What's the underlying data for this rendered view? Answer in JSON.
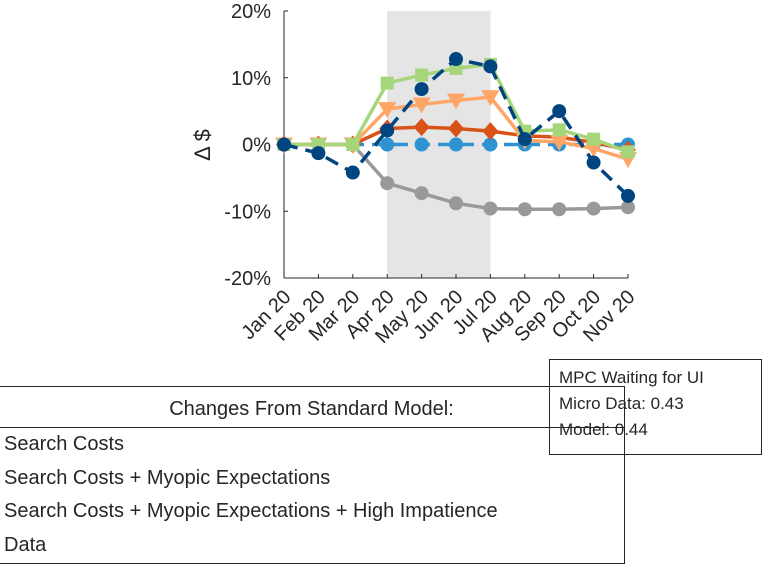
{
  "chart_data": {
    "type": "line",
    "ylabel": "Δ $",
    "x": [
      "Jan 20",
      "Feb 20",
      "Mar 20",
      "Apr 20",
      "May 20",
      "Jun 20",
      "Jul 20",
      "Aug 20",
      "Sep 20",
      "Oct 20",
      "Nov 20"
    ],
    "ylim": [
      -20,
      20
    ],
    "yticks": [
      "20%",
      "10%",
      "0%",
      "-10%",
      "-20%"
    ],
    "shaded_region": [
      "Apr 20",
      "Jul 20"
    ],
    "grid": false,
    "series": [
      {
        "color": "#2E93D0",
        "marker": "circle",
        "dash": true,
        "values": [
          0,
          0,
          0,
          0,
          0,
          0,
          0,
          0,
          0,
          0,
          0
        ]
      },
      {
        "color": "#999999",
        "marker": "circle",
        "dash": false,
        "values": [
          0,
          0,
          0,
          -5.8,
          -7.3,
          -8.8,
          -9.6,
          -9.7,
          -9.7,
          -9.6,
          -9.4
        ]
      },
      {
        "color": "#D95319",
        "marker": "diamond",
        "dash": false,
        "values": [
          0,
          0,
          0,
          2.4,
          2.6,
          2.4,
          2.0,
          1.3,
          1.1,
          0.3,
          -0.8
        ]
      },
      {
        "color": "#FFA666",
        "marker": "triangle-down",
        "dash": false,
        "values": [
          0,
          0,
          0,
          5.3,
          6.0,
          6.6,
          7.1,
          0.6,
          0.4,
          -0.6,
          -2.2
        ]
      },
      {
        "color": "#A6D67A",
        "marker": "square",
        "dash": false,
        "values": [
          0,
          0,
          0,
          9.2,
          10.4,
          11.4,
          12.0,
          2.0,
          2.2,
          0.8,
          -1.1
        ]
      },
      {
        "color": "#00457F",
        "marker": "circle",
        "dash": true,
        "values": [
          0,
          -1.3,
          -4.2,
          2.1,
          8.3,
          12.8,
          11.7,
          0.8,
          5.0,
          -2.7,
          -7.7
        ]
      }
    ],
    "legend": {
      "title": "Changes From Standard Model:",
      "entries": [
        "Search Costs",
        "Search Costs + Myopic Expectations",
        "Search Costs + Myopic Expectations + High Impatience",
        "Data"
      ]
    },
    "annotation": [
      "MPC Waiting for UI",
      "Micro Data: 0.43",
      "Model: 0.44"
    ]
  }
}
